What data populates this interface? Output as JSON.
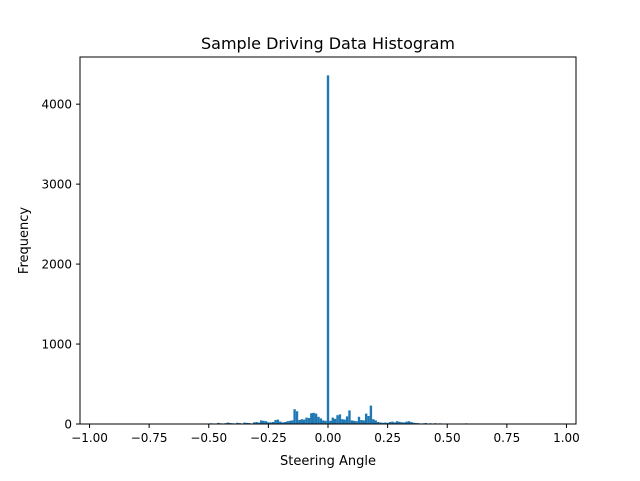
{
  "chart_data": {
    "type": "bar",
    "title": "Sample Driving Data Histogram",
    "xlabel": "Steering Angle",
    "ylabel": "Frequency",
    "xlim": [
      -1.04,
      1.04
    ],
    "ylim": [
      0,
      4590
    ],
    "grid": false,
    "color": "#1f77b4",
    "x_ticks": [
      -1.0,
      -0.75,
      -0.5,
      -0.25,
      0.0,
      0.25,
      0.5,
      0.75,
      1.0
    ],
    "x_tick_labels": [
      "−1.00",
      "−0.75",
      "−0.50",
      "−0.25",
      "0.00",
      "0.25",
      "0.50",
      "0.75",
      "1.00"
    ],
    "y_ticks": [
      0,
      1000,
      2000,
      3000,
      4000
    ],
    "y_tick_labels": [
      "0",
      "1000",
      "2000",
      "3000",
      "4000"
    ],
    "bin_width": 0.01,
    "bins": [
      {
        "x": -0.94,
        "count": 3
      },
      {
        "x": -0.68,
        "count": 2
      },
      {
        "x": -0.63,
        "count": 4
      },
      {
        "x": -0.6,
        "count": 3
      },
      {
        "x": -0.52,
        "count": 6
      },
      {
        "x": -0.51,
        "count": 5
      },
      {
        "x": -0.49,
        "count": 9
      },
      {
        "x": -0.47,
        "count": 6
      },
      {
        "x": -0.46,
        "count": 14
      },
      {
        "x": -0.45,
        "count": 8
      },
      {
        "x": -0.43,
        "count": 10
      },
      {
        "x": -0.42,
        "count": 18
      },
      {
        "x": -0.41,
        "count": 12
      },
      {
        "x": -0.4,
        "count": 9
      },
      {
        "x": -0.38,
        "count": 15
      },
      {
        "x": -0.37,
        "count": 11
      },
      {
        "x": -0.35,
        "count": 18
      },
      {
        "x": -0.34,
        "count": 14
      },
      {
        "x": -0.33,
        "count": 12
      },
      {
        "x": -0.31,
        "count": 20
      },
      {
        "x": -0.3,
        "count": 25
      },
      {
        "x": -0.29,
        "count": 18
      },
      {
        "x": -0.28,
        "count": 45
      },
      {
        "x": -0.27,
        "count": 40
      },
      {
        "x": -0.26,
        "count": 35
      },
      {
        "x": -0.25,
        "count": 22
      },
      {
        "x": -0.24,
        "count": 20
      },
      {
        "x": -0.23,
        "count": 25
      },
      {
        "x": -0.22,
        "count": 50
      },
      {
        "x": -0.21,
        "count": 55
      },
      {
        "x": -0.2,
        "count": 30
      },
      {
        "x": -0.19,
        "count": 20
      },
      {
        "x": -0.18,
        "count": 25
      },
      {
        "x": -0.17,
        "count": 35
      },
      {
        "x": -0.16,
        "count": 40
      },
      {
        "x": -0.15,
        "count": 45
      },
      {
        "x": -0.14,
        "count": 185
      },
      {
        "x": -0.13,
        "count": 160
      },
      {
        "x": -0.12,
        "count": 50
      },
      {
        "x": -0.11,
        "count": 60
      },
      {
        "x": -0.1,
        "count": 55
      },
      {
        "x": -0.09,
        "count": 80
      },
      {
        "x": -0.08,
        "count": 75
      },
      {
        "x": -0.07,
        "count": 135
      },
      {
        "x": -0.06,
        "count": 140
      },
      {
        "x": -0.05,
        "count": 130
      },
      {
        "x": -0.04,
        "count": 90
      },
      {
        "x": -0.03,
        "count": 70
      },
      {
        "x": -0.02,
        "count": 45
      },
      {
        "x": -0.01,
        "count": 40
      },
      {
        "x": 0.0,
        "count": 4360
      },
      {
        "x": 0.01,
        "count": 40
      },
      {
        "x": 0.02,
        "count": 80
      },
      {
        "x": 0.03,
        "count": 65
      },
      {
        "x": 0.04,
        "count": 110
      },
      {
        "x": 0.05,
        "count": 120
      },
      {
        "x": 0.06,
        "count": 60
      },
      {
        "x": 0.07,
        "count": 55
      },
      {
        "x": 0.08,
        "count": 95
      },
      {
        "x": 0.09,
        "count": 170
      },
      {
        "x": 0.1,
        "count": 45
      },
      {
        "x": 0.11,
        "count": 40
      },
      {
        "x": 0.12,
        "count": 35
      },
      {
        "x": 0.13,
        "count": 90
      },
      {
        "x": 0.14,
        "count": 50
      },
      {
        "x": 0.15,
        "count": 45
      },
      {
        "x": 0.16,
        "count": 130
      },
      {
        "x": 0.17,
        "count": 100
      },
      {
        "x": 0.18,
        "count": 230
      },
      {
        "x": 0.19,
        "count": 60
      },
      {
        "x": 0.2,
        "count": 45
      },
      {
        "x": 0.21,
        "count": 25
      },
      {
        "x": 0.22,
        "count": 20
      },
      {
        "x": 0.23,
        "count": 15
      },
      {
        "x": 0.24,
        "count": 18
      },
      {
        "x": 0.25,
        "count": 15
      },
      {
        "x": 0.26,
        "count": 25
      },
      {
        "x": 0.27,
        "count": 30
      },
      {
        "x": 0.28,
        "count": 20
      },
      {
        "x": 0.29,
        "count": 35
      },
      {
        "x": 0.3,
        "count": 28
      },
      {
        "x": 0.31,
        "count": 22
      },
      {
        "x": 0.32,
        "count": 20
      },
      {
        "x": 0.33,
        "count": 30
      },
      {
        "x": 0.34,
        "count": 35
      },
      {
        "x": 0.35,
        "count": 25
      },
      {
        "x": 0.36,
        "count": 15
      },
      {
        "x": 0.37,
        "count": 12
      },
      {
        "x": 0.38,
        "count": 10
      },
      {
        "x": 0.4,
        "count": 8
      },
      {
        "x": 0.41,
        "count": 12
      },
      {
        "x": 0.43,
        "count": 9
      },
      {
        "x": 0.45,
        "count": 10
      },
      {
        "x": 0.47,
        "count": 8
      },
      {
        "x": 0.49,
        "count": 6
      },
      {
        "x": 0.52,
        "count": 5
      },
      {
        "x": 0.55,
        "count": 6
      },
      {
        "x": 0.58,
        "count": 8
      },
      {
        "x": 0.59,
        "count": 6
      },
      {
        "x": 0.62,
        "count": 3
      },
      {
        "x": 0.65,
        "count": 4
      },
      {
        "x": 0.7,
        "count": 2
      },
      {
        "x": 0.75,
        "count": 2
      },
      {
        "x": 1.0,
        "count": 2
      }
    ]
  }
}
